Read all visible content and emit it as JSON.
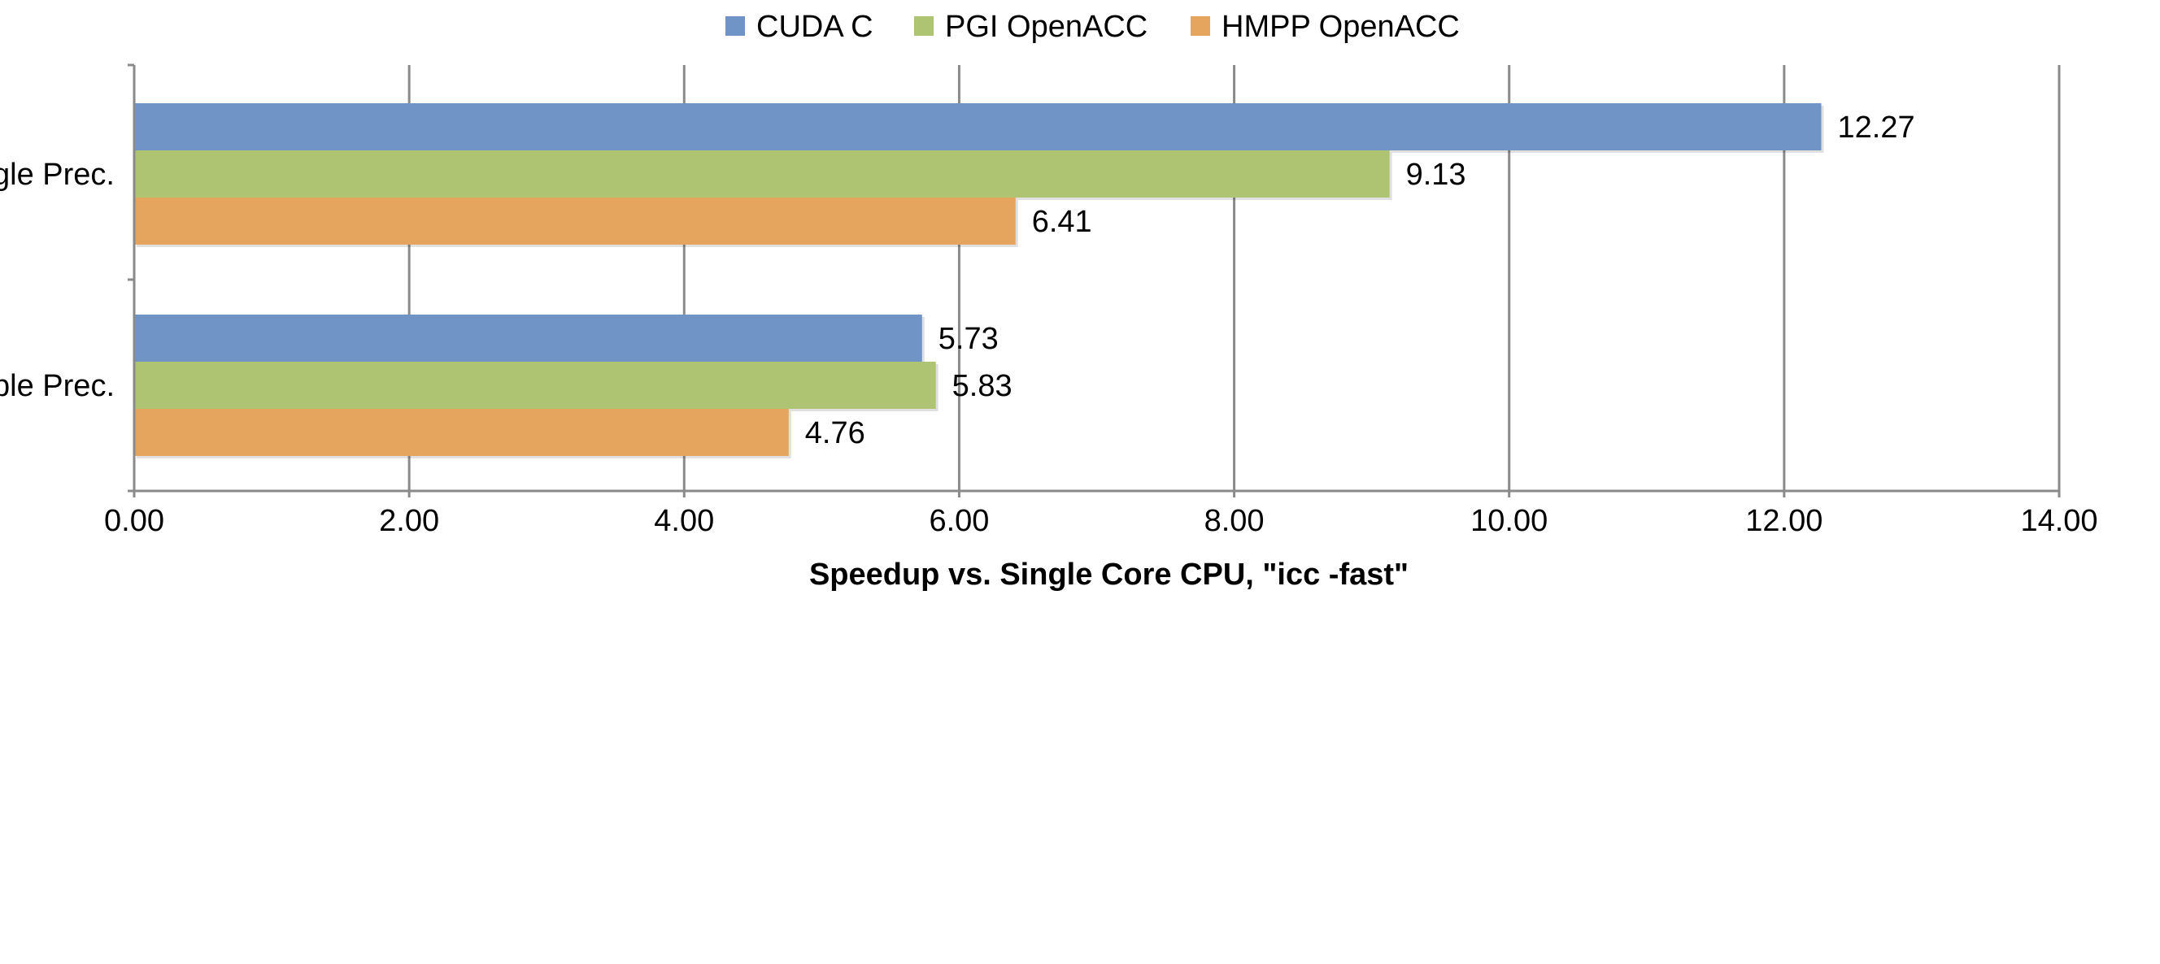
{
  "chart_data": {
    "type": "bar",
    "orientation": "horizontal",
    "categories": [
      "Single Prec.",
      "Double Prec."
    ],
    "series": [
      {
        "name": "CUDA C",
        "values": [
          12.27,
          5.73
        ],
        "labels": [
          "12.27",
          "5.73"
        ],
        "color": "#7194c7"
      },
      {
        "name": "PGI OpenACC",
        "values": [
          9.13,
          5.83
        ],
        "labels": [
          "9.13",
          "5.83"
        ],
        "color": "#aec472"
      },
      {
        "name": "HMPP OpenACC",
        "values": [
          6.41,
          4.76
        ],
        "labels": [
          "6.41",
          "4.76"
        ],
        "color": "#e6a55e"
      }
    ],
    "xlabel": "Speedup vs. Single Core CPU, \"icc -fast\"",
    "ylabel": "",
    "xlim": [
      0,
      14
    ],
    "xticks": [
      0,
      2,
      4,
      6,
      8,
      10,
      12,
      14
    ],
    "xtick_labels": [
      "0.00",
      "2.00",
      "4.00",
      "6.00",
      "8.00",
      "10.00",
      "12.00",
      "14.00"
    ],
    "grid": "vertical",
    "legend_position": "top-center",
    "gridline_color": "#8a8a8a",
    "axis_color": "#8a8a8a"
  }
}
